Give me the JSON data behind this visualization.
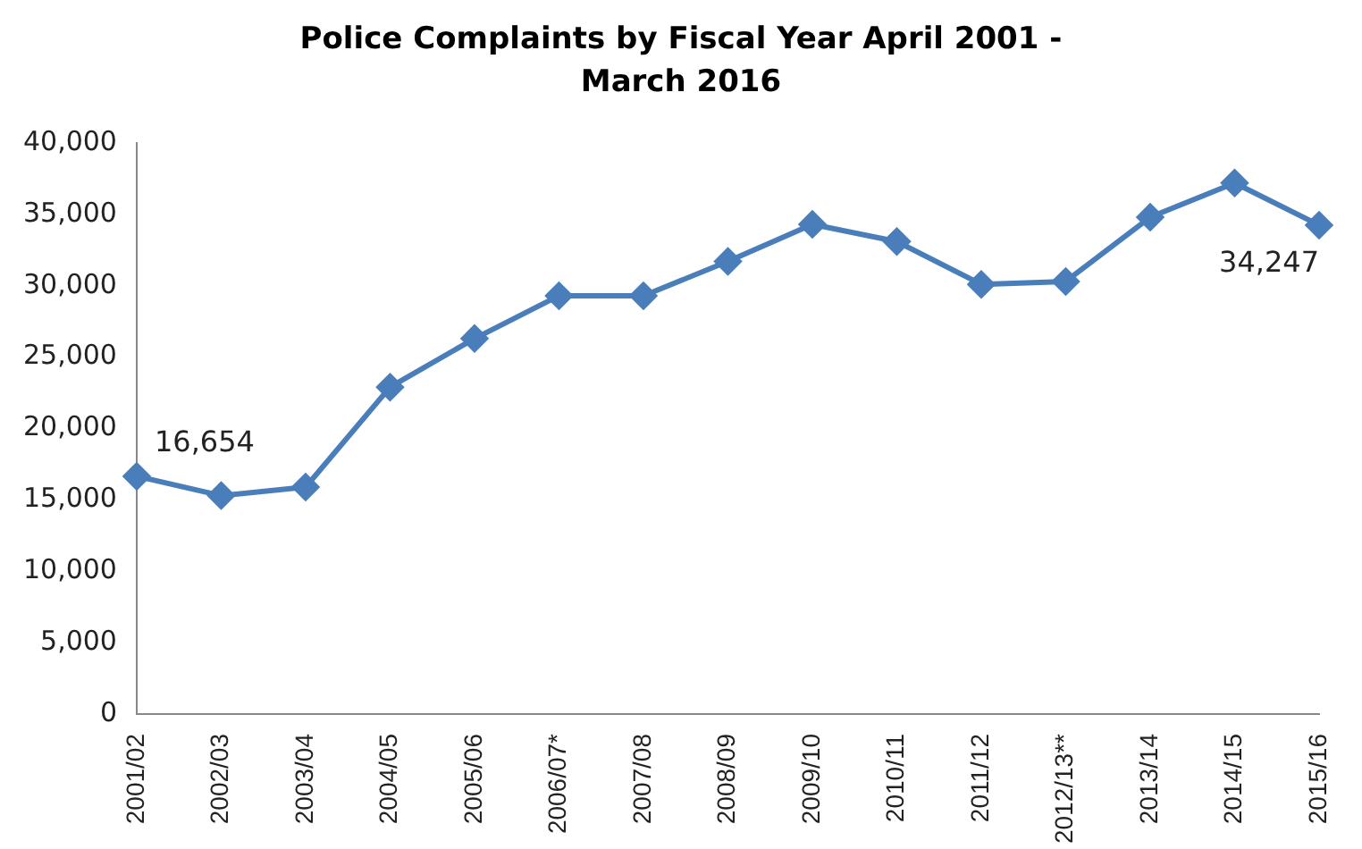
{
  "chart_data": {
    "type": "line",
    "title": "Police Complaints by Fiscal Year April 2001 - March 2016",
    "categories": [
      "2001/02",
      "2002/03",
      "2003/04",
      "2004/05",
      "2005/06",
      "2006/07*",
      "2007/08",
      "2008/09",
      "2009/10",
      "2010/11",
      "2011/12",
      "2012/13**",
      "2013/14",
      "2014/15",
      "2015/16"
    ],
    "series": [
      {
        "color": "#4a7ebb",
        "values": [
          16654,
          15300,
          15900,
          22900,
          26300,
          29300,
          29300,
          31700,
          34300,
          33100,
          30100,
          30300,
          34800,
          37200,
          34247
        ],
        "value_labels": [
          "16,654",
          null,
          null,
          null,
          null,
          null,
          null,
          null,
          null,
          null,
          null,
          null,
          null,
          null,
          "34,247"
        ]
      }
    ],
    "ylim": [
      0,
      40000
    ],
    "yticks": [
      {
        "value": 0,
        "label": "0"
      },
      {
        "value": 5000,
        "label": "5,000"
      },
      {
        "value": 10000,
        "label": "10,000"
      },
      {
        "value": 15000,
        "label": "15,000"
      },
      {
        "value": 20000,
        "label": "20,000"
      },
      {
        "value": 25000,
        "label": "25,000"
      },
      {
        "value": 30000,
        "label": "30,000"
      },
      {
        "value": 35000,
        "label": "35,000"
      },
      {
        "value": 40000,
        "label": "40,000"
      }
    ],
    "grid": false,
    "legend": false,
    "marker": "diamond",
    "line_style": "solid"
  }
}
